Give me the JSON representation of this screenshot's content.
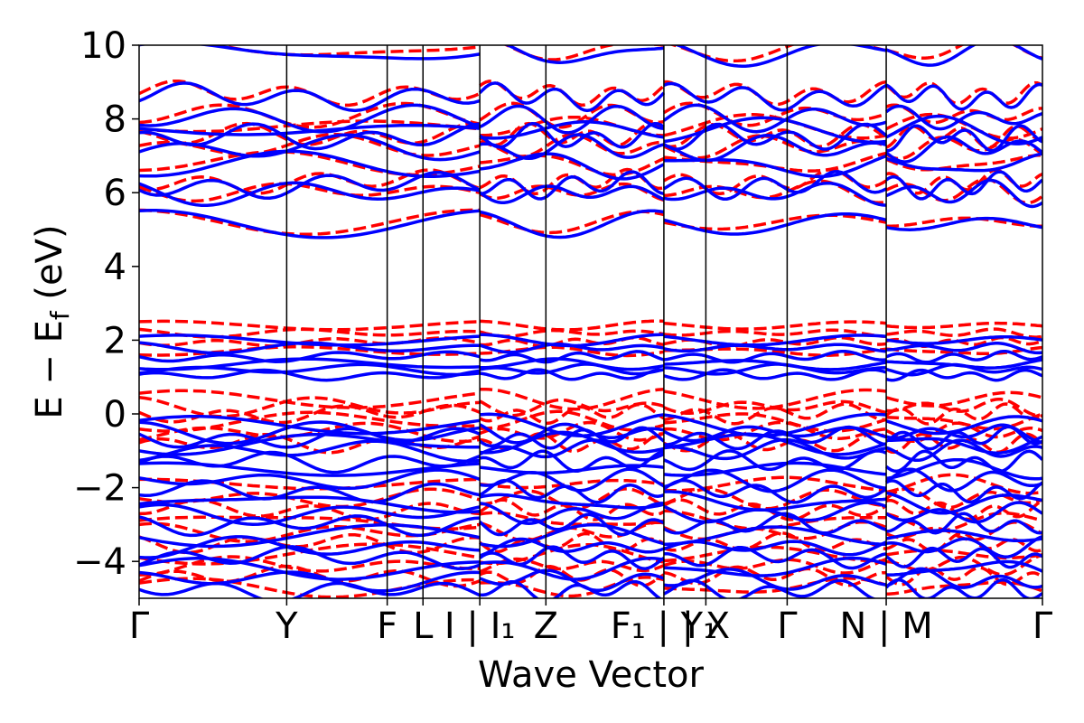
{
  "chart_data": {
    "type": "line",
    "xlabel": "Wave Vector",
    "ylabel": "E − E",
    "ylabel_sub": "f",
    "ylabel_unit": " (eV)",
    "ylim": [
      -5,
      10
    ],
    "yticks": [
      {
        "value": 10,
        "label": "10"
      },
      {
        "value": 8,
        "label": "8"
      },
      {
        "value": 6,
        "label": "6"
      },
      {
        "value": 4,
        "label": "4"
      },
      {
        "value": 2,
        "label": "2"
      },
      {
        "value": 0,
        "label": "0"
      },
      {
        "value": -2,
        "label": "−2"
      },
      {
        "value": -4,
        "label": "−4"
      }
    ],
    "kpoint_labels": [
      {
        "text": "Γ",
        "pos": 0.0
      },
      {
        "text": "Y",
        "pos": 1.621
      },
      {
        "text": "F",
        "pos": 2.725
      },
      {
        "text": "L",
        "pos": 3.118
      },
      {
        "text": "I | I₁",
        "pos": 3.742
      },
      {
        "text": "Z",
        "pos": 4.468
      },
      {
        "text": "F₁ | Y₁",
        "pos": 5.764
      },
      {
        "text": "| X",
        "pos": 6.225
      },
      {
        "text": "Γ",
        "pos": 7.118
      },
      {
        "text": "N | M",
        "pos": 8.206
      },
      {
        "text": "Γ",
        "pos": 9.922
      }
    ],
    "kpath_breaks": [
      3.742,
      5.764,
      8.206
    ],
    "xlim": [
      0,
      9.922
    ],
    "colors": {
      "series_a": "#0000ff",
      "series_b": "#ff0000",
      "divider": "#000000"
    },
    "bands": {
      "series_a_style": "solid",
      "series_b_style": "dashed",
      "series_a_conduction": [
        5.15,
        6.0,
        6.2,
        6.75,
        7.2,
        7.5,
        7.7,
        8.0,
        8.6,
        9.8
      ],
      "series_a_valence_top": [
        2.0,
        1.8,
        1.55,
        1.35,
        1.2,
        1.05
      ],
      "series_a_valence": [
        -0.3,
        -0.5,
        -0.65,
        -0.8,
        -1.0,
        -1.3,
        -1.5,
        -1.8,
        -2.1,
        -2.4,
        -2.7,
        -3.0,
        -3.3,
        -3.6,
        -3.9,
        -4.2,
        -4.5,
        -4.8
      ],
      "series_b_conduction": [
        5.2,
        6.05,
        6.3,
        6.8,
        7.25,
        7.55,
        7.8,
        8.1,
        8.7,
        9.9
      ],
      "series_b_valence_top": [
        2.4,
        2.2,
        1.95,
        1.7
      ],
      "series_b_valence": [
        0.4,
        0.2,
        0.0,
        -0.2,
        -0.5,
        -0.8,
        -1.9,
        -2.3,
        -2.6,
        -2.9,
        -3.2,
        -3.5,
        -3.8,
        -4.1,
        -4.4,
        -4.7
      ]
    }
  }
}
